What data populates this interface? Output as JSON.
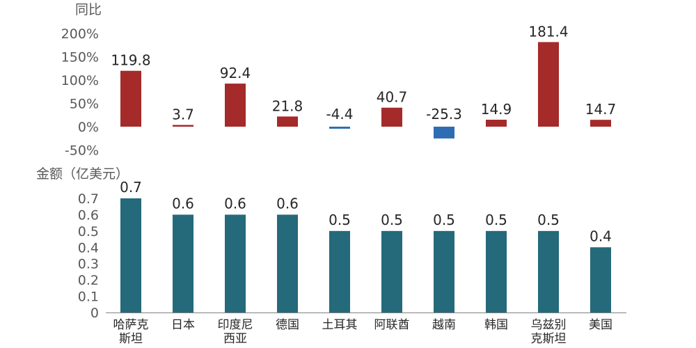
{
  "chart_data": [
    {
      "type": "bar",
      "ylabel": "同比",
      "categories": [
        "哈萨克斯坦",
        "日本",
        "印度尼西亚",
        "德国",
        "土耳其",
        "阿联酋",
        "越南",
        "韩国",
        "乌兹别克斯坦",
        "美国"
      ],
      "category_lines": [
        [
          "哈萨克",
          "斯坦"
        ],
        [
          "日本"
        ],
        [
          "印度尼",
          "西亚"
        ],
        [
          "德国"
        ],
        [
          "土耳其"
        ],
        [
          "阿联酋"
        ],
        [
          "越南"
        ],
        [
          "韩国"
        ],
        [
          "乌兹别",
          "克斯坦"
        ],
        [
          "美国"
        ]
      ],
      "values": [
        119.8,
        3.7,
        92.4,
        21.8,
        -4.4,
        40.7,
        -25.3,
        14.9,
        181.4,
        14.7
      ],
      "value_labels": [
        "119.8",
        "3.7",
        "92.4",
        "21.8",
        "-4.4",
        "40.7",
        "-25.3",
        "14.9",
        "181.4",
        "14.7"
      ],
      "ylim": [
        -50,
        200
      ],
      "yticks": [
        -50,
        0,
        50,
        100,
        150,
        200
      ],
      "ytick_labels": [
        "-50%",
        "0%",
        "50%",
        "100%",
        "150%",
        "200%"
      ],
      "colors": {
        "positive": "#a52a2a",
        "negative": "#2e6db4"
      },
      "grid": false
    },
    {
      "type": "bar",
      "ylabel": "金额（亿美元）",
      "categories": [
        "哈萨克斯坦",
        "日本",
        "印度尼西亚",
        "德国",
        "土耳其",
        "阿联酋",
        "越南",
        "韩国",
        "乌兹别克斯坦",
        "美国"
      ],
      "values": [
        0.7,
        0.6,
        0.6,
        0.6,
        0.5,
        0.5,
        0.5,
        0.5,
        0.5,
        0.4
      ],
      "value_labels": [
        "0.7",
        "0.6",
        "0.6",
        "0.6",
        "0.5",
        "0.5",
        "0.5",
        "0.5",
        "0.5",
        "0.4"
      ],
      "ylim": [
        0,
        0.7
      ],
      "yticks": [
        0,
        0.1,
        0.2,
        0.3,
        0.4,
        0.5,
        0.6,
        0.7
      ],
      "ytick_labels": [
        "0",
        "0.1",
        "0.2",
        "0.3",
        "0.4",
        "0.5",
        "0.6",
        "0.7"
      ],
      "colors": {
        "bar": "#246a7a"
      },
      "grid": false
    }
  ]
}
